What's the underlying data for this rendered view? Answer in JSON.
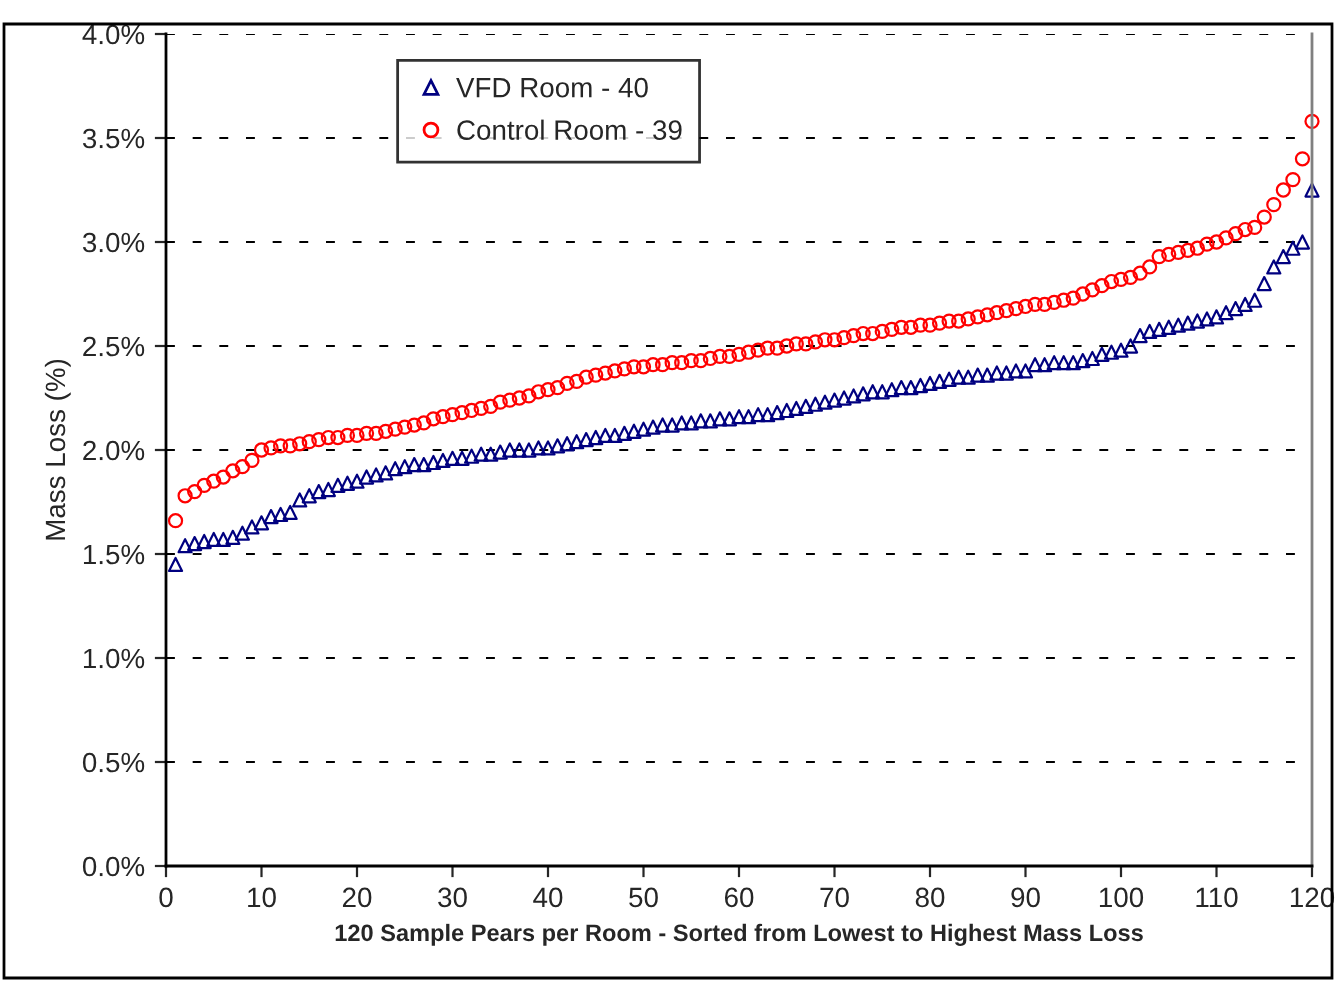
{
  "chart_data": {
    "type": "scatter",
    "xlabel": "120 Sample Pears per Room - Sorted from Lowest to Highest Mass Loss",
    "ylabel": "Mass Loss (%)",
    "x": [
      1,
      2,
      3,
      4,
      5,
      6,
      7,
      8,
      9,
      10,
      11,
      12,
      13,
      14,
      15,
      16,
      17,
      18,
      19,
      20,
      21,
      22,
      23,
      24,
      25,
      26,
      27,
      28,
      29,
      30,
      31,
      32,
      33,
      34,
      35,
      36,
      37,
      38,
      39,
      40,
      41,
      42,
      43,
      44,
      45,
      46,
      47,
      48,
      49,
      50,
      51,
      52,
      53,
      54,
      55,
      56,
      57,
      58,
      59,
      60,
      61,
      62,
      63,
      64,
      65,
      66,
      67,
      68,
      69,
      70,
      71,
      72,
      73,
      74,
      75,
      76,
      77,
      78,
      79,
      80,
      81,
      82,
      83,
      84,
      85,
      86,
      87,
      88,
      89,
      90,
      91,
      92,
      93,
      94,
      95,
      96,
      97,
      98,
      99,
      100,
      101,
      102,
      103,
      104,
      105,
      106,
      107,
      108,
      109,
      110,
      111,
      112,
      113,
      114,
      115,
      116,
      117,
      118,
      119,
      120
    ],
    "series": [
      {
        "name": "VFD Room - 40",
        "color": "#000080",
        "marker": "triangle",
        "values": [
          1.45,
          1.54,
          1.55,
          1.56,
          1.57,
          1.57,
          1.58,
          1.6,
          1.63,
          1.65,
          1.68,
          1.69,
          1.7,
          1.76,
          1.78,
          1.8,
          1.81,
          1.83,
          1.84,
          1.85,
          1.87,
          1.88,
          1.89,
          1.91,
          1.92,
          1.93,
          1.93,
          1.94,
          1.95,
          1.96,
          1.96,
          1.97,
          1.98,
          1.98,
          1.99,
          2.0,
          2.0,
          2.0,
          2.01,
          2.01,
          2.02,
          2.03,
          2.04,
          2.05,
          2.06,
          2.07,
          2.07,
          2.08,
          2.09,
          2.1,
          2.11,
          2.12,
          2.12,
          2.13,
          2.13,
          2.14,
          2.14,
          2.15,
          2.15,
          2.16,
          2.16,
          2.17,
          2.17,
          2.18,
          2.19,
          2.2,
          2.21,
          2.22,
          2.23,
          2.24,
          2.25,
          2.26,
          2.27,
          2.28,
          2.28,
          2.29,
          2.3,
          2.3,
          2.31,
          2.32,
          2.33,
          2.34,
          2.35,
          2.35,
          2.36,
          2.36,
          2.37,
          2.37,
          2.38,
          2.38,
          2.41,
          2.41,
          2.42,
          2.42,
          2.42,
          2.43,
          2.44,
          2.46,
          2.47,
          2.48,
          2.5,
          2.55,
          2.57,
          2.58,
          2.59,
          2.6,
          2.61,
          2.62,
          2.63,
          2.64,
          2.66,
          2.68,
          2.7,
          2.72,
          2.8,
          2.88,
          2.93,
          2.97,
          3.0,
          3.25
        ]
      },
      {
        "name": "Control Room - 39",
        "color": "#ff0000",
        "marker": "circle",
        "values": [
          1.66,
          1.78,
          1.8,
          1.83,
          1.85,
          1.87,
          1.9,
          1.92,
          1.95,
          2.0,
          2.01,
          2.02,
          2.02,
          2.03,
          2.04,
          2.05,
          2.06,
          2.06,
          2.07,
          2.07,
          2.08,
          2.08,
          2.09,
          2.1,
          2.11,
          2.12,
          2.13,
          2.15,
          2.16,
          2.17,
          2.18,
          2.19,
          2.2,
          2.21,
          2.23,
          2.24,
          2.25,
          2.26,
          2.28,
          2.29,
          2.3,
          2.32,
          2.33,
          2.35,
          2.36,
          2.37,
          2.38,
          2.39,
          2.4,
          2.4,
          2.41,
          2.41,
          2.42,
          2.42,
          2.43,
          2.43,
          2.44,
          2.45,
          2.45,
          2.46,
          2.47,
          2.48,
          2.49,
          2.49,
          2.5,
          2.51,
          2.51,
          2.52,
          2.53,
          2.53,
          2.54,
          2.55,
          2.56,
          2.56,
          2.57,
          2.58,
          2.59,
          2.59,
          2.6,
          2.6,
          2.61,
          2.62,
          2.62,
          2.63,
          2.64,
          2.65,
          2.66,
          2.67,
          2.68,
          2.69,
          2.7,
          2.7,
          2.71,
          2.72,
          2.73,
          2.75,
          2.77,
          2.79,
          2.81,
          2.82,
          2.83,
          2.85,
          2.88,
          2.93,
          2.94,
          2.95,
          2.96,
          2.97,
          2.99,
          3.0,
          3.02,
          3.04,
          3.06,
          3.07,
          3.12,
          3.18,
          3.25,
          3.3,
          3.4,
          3.58
        ]
      }
    ],
    "xlim": [
      0,
      120
    ],
    "xticks": [
      0,
      10,
      20,
      30,
      40,
      50,
      60,
      70,
      80,
      90,
      100,
      110,
      120
    ],
    "ylim": [
      0,
      4
    ],
    "yticks": [
      {
        "value": 0,
        "label": "0.0%"
      },
      {
        "value": 0.5,
        "label": "0.5%"
      },
      {
        "value": 1,
        "label": "1.0%"
      },
      {
        "value": 1.5,
        "label": "1.5%"
      },
      {
        "value": 2,
        "label": "2.0%"
      },
      {
        "value": 2.5,
        "label": "2.5%"
      },
      {
        "value": 3,
        "label": "3.0%"
      },
      {
        "value": 3.5,
        "label": "3.5%"
      },
      {
        "value": 4,
        "label": "4.0%"
      }
    ],
    "grid": "y",
    "legend": "top left"
  }
}
